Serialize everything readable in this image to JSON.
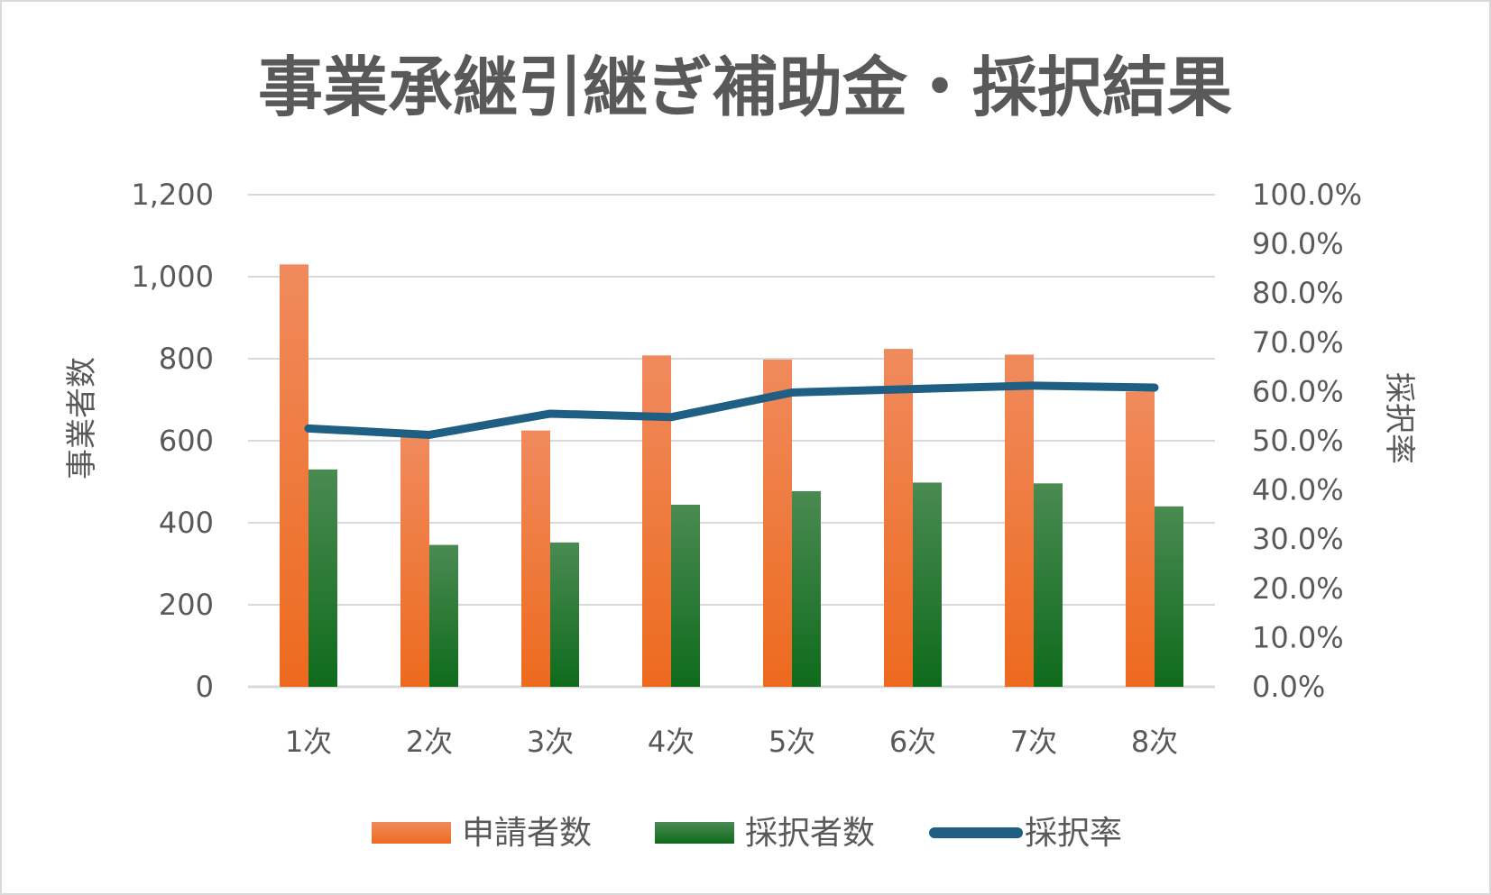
{
  "chart_data": {
    "type": "bar",
    "title": "事業承継引継ぎ補助金・採択結果",
    "categories": [
      "1次",
      "2次",
      "3次",
      "4次",
      "5次",
      "6次",
      "7次",
      "8次"
    ],
    "series": [
      {
        "name": "申請者数",
        "type": "bar",
        "axis": "left",
        "color": "#ed7d31",
        "values": [
          1030,
          610,
          625,
          808,
          798,
          824,
          810,
          720
        ]
      },
      {
        "name": "採択者数",
        "type": "bar",
        "axis": "left",
        "color": "#1e7b28",
        "values": [
          530,
          346,
          352,
          444,
          477,
          498,
          496,
          440
        ]
      },
      {
        "name": "採択率",
        "type": "line",
        "axis": "right",
        "color": "#1f5f84",
        "values": [
          0.525,
          0.512,
          0.555,
          0.548,
          0.598,
          0.605,
          0.612,
          0.608
        ]
      }
    ],
    "ylabel": "事業者数",
    "y2label": "採択率",
    "ylim": [
      0,
      1200
    ],
    "y2lim": [
      0,
      1
    ],
    "yticks": [
      "0",
      "200",
      "400",
      "600",
      "800",
      "1,000",
      "1,200"
    ],
    "y2ticks": [
      "0.0%",
      "10.0%",
      "20.0%",
      "30.0%",
      "40.0%",
      "50.0%",
      "60.0%",
      "70.0%",
      "80.0%",
      "90.0%",
      "100.0%"
    ],
    "grid": true,
    "legend_position": "bottom"
  }
}
